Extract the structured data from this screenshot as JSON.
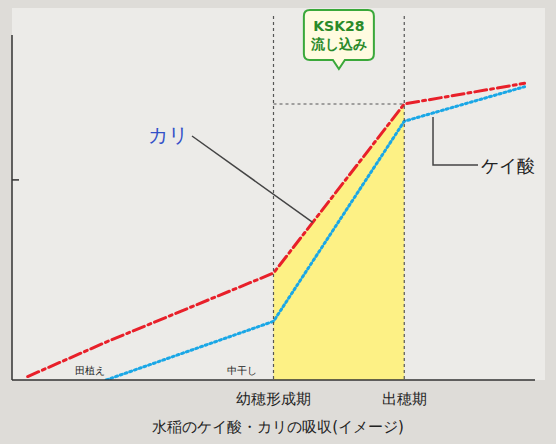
{
  "chart_data": {
    "type": "line",
    "title": "水稲のケイ酸・カリの吸収(イメージ)",
    "x": [
      3,
      18,
      50,
      75,
      98
    ],
    "xlim": [
      0,
      100
    ],
    "xticks": [
      {
        "value": 50,
        "label": "幼穂形成期"
      },
      {
        "value": 75,
        "label": "出穂期"
      }
    ],
    "ylim": [
      0,
      100
    ],
    "yticks": [
      58
    ],
    "tick_labels": "x",
    "series": [
      {
        "name": "カリ",
        "color": "#e8202a",
        "line_style": "dashdot",
        "values": [
          1,
          11,
          31,
          80,
          86
        ]
      },
      {
        "name": "ケイ酸",
        "color": "#1aa7e6",
        "line_style": "dotted",
        "values": [
          null,
          0,
          17,
          75,
          85
        ]
      }
    ],
    "annotations": [
      {
        "text": "田植え",
        "x": 15
      },
      {
        "text": "中干し",
        "x": 44
      }
    ],
    "callout": "KSK28 流し込み"
  }
}
